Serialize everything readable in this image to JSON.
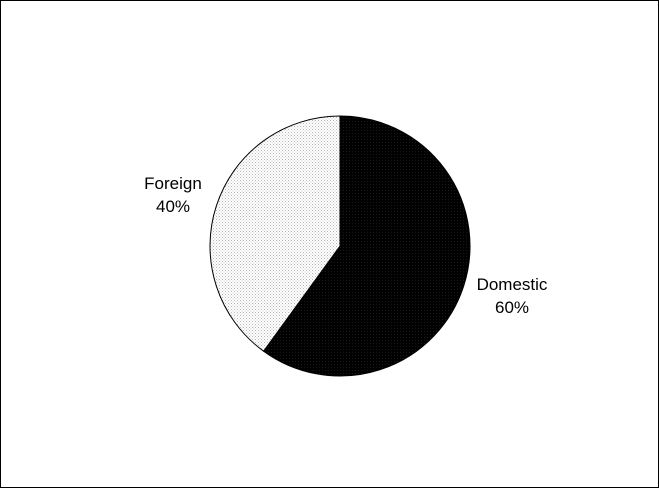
{
  "chart_data": {
    "type": "pie",
    "title": "",
    "categories": [
      "Domestic",
      "Foreign"
    ],
    "values": [
      60,
      40
    ],
    "value_labels": [
      "60%",
      "40%"
    ],
    "colors": [
      "#000000",
      "#f0f0f0"
    ],
    "grid": false,
    "legend": "none"
  }
}
